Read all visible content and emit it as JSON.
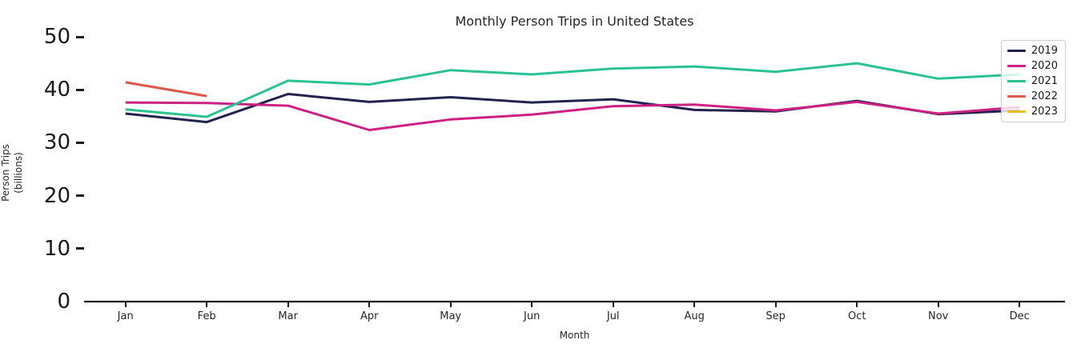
{
  "chart_data": {
    "type": "line",
    "title": "Monthly Person Trips in United States",
    "xlabel": "Month",
    "ylabel_lines": [
      "Person Trips",
      "(billions)"
    ],
    "categories": [
      "Jan",
      "Feb",
      "Mar",
      "Apr",
      "May",
      "Jun",
      "Jul",
      "Aug",
      "Sep",
      "Oct",
      "Nov",
      "Dec"
    ],
    "yticks": [
      0,
      10,
      20,
      30,
      40,
      50
    ],
    "ylim": [
      0,
      52
    ],
    "grid": false,
    "legend_position": "upper right",
    "axis_color": "#1a1a1a",
    "series": [
      {
        "name": "2019",
        "color": "#22224f",
        "values": [
          35.5,
          33.9,
          39.2,
          37.7,
          38.6,
          37.6,
          38.2,
          36.2,
          35.9,
          37.9,
          35.4,
          36.1
        ]
      },
      {
        "name": "2020",
        "color": "#cc2183",
        "values": [
          37.6,
          37.5,
          37.0,
          32.4,
          34.4,
          35.3,
          36.9,
          37.2,
          36.1,
          37.7,
          35.5,
          36.7
        ]
      },
      {
        "name": "2021",
        "color": "#2bc293",
        "values": [
          36.3,
          34.9,
          41.7,
          41.0,
          43.7,
          42.9,
          44.0,
          44.4,
          43.4,
          45.0,
          42.1,
          42.9
        ]
      },
      {
        "name": "2022",
        "color": "#de574b",
        "values": [
          41.4,
          38.8,
          null,
          null,
          null,
          null,
          null,
          null,
          null,
          null,
          null,
          null
        ]
      },
      {
        "name": "2023",
        "color": "#e8bd1f",
        "values": [
          null,
          null,
          null,
          null,
          null,
          null,
          null,
          null,
          null,
          null,
          null,
          null
        ]
      }
    ]
  }
}
